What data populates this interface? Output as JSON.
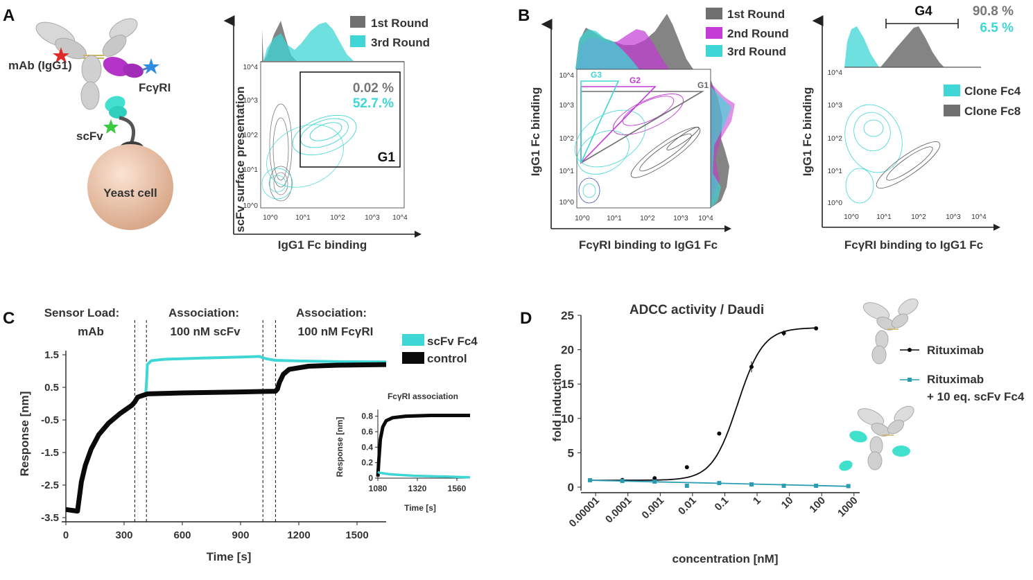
{
  "panel_letters": [
    "A",
    "B",
    "C",
    "D"
  ],
  "colors": {
    "gray": "#6f6f6f",
    "cyan": "#3fd6d6",
    "magenta": "#c23bd4",
    "black": "#0a0a0a",
    "teal": "#2a9db3"
  },
  "schematic": {
    "mab_label": "mAb (IgG1)",
    "fcgr_label": "FcγRI",
    "scfv_label": "scFv",
    "yeast_label": "Yeast cell"
  },
  "chart_data": [
    {
      "id": "A",
      "type": "scatter",
      "subtype": "flow cytometry contour",
      "xlabel": "IgG1 Fc binding",
      "ylabel": "scFv surface presentation",
      "xticks": [
        "10^0",
        "10^1",
        "10^2",
        "10^3",
        "10^4"
      ],
      "yticks": [
        "10^0",
        "10^1",
        "10^2",
        "10^3",
        "10^4"
      ],
      "legend": [
        {
          "name": "1st Round",
          "color": "#6f6f6f"
        },
        {
          "name": "3rd Round",
          "color": "#3fd6d6"
        }
      ],
      "gate": {
        "name": "G1",
        "pct_round1": "0.02 %",
        "pct_round3": "52.7.%"
      }
    },
    {
      "id": "B1",
      "type": "scatter",
      "subtype": "flow cytometry contour",
      "xlabel": "FcγRI binding to IgG1 Fc",
      "ylabel": "IgG1 Fc binding",
      "xticks": [
        "10^0",
        "10^1",
        "10^2",
        "10^3",
        "10^4"
      ],
      "yticks": [
        "10^0",
        "10^1",
        "10^2",
        "10^3",
        "10^4"
      ],
      "legend": [
        {
          "name": "1st Round",
          "color": "#6f6f6f"
        },
        {
          "name": "2nd Round",
          "color": "#c23bd4"
        },
        {
          "name": "3rd Round",
          "color": "#3fd6d6"
        }
      ],
      "gates": [
        "G1",
        "G2",
        "G3"
      ]
    },
    {
      "id": "B2",
      "type": "scatter",
      "subtype": "flow cytometry contour",
      "xlabel": "FcγRI binding to IgG1 Fc",
      "ylabel": "IgG1 Fc binding",
      "xticks": [
        "10^0",
        "10^1",
        "10^2",
        "10^3",
        "10^4"
      ],
      "yticks": [
        "10^0",
        "10^1",
        "10^2",
        "10^3",
        "10^4"
      ],
      "legend": [
        {
          "name": "Clone Fc4",
          "color": "#3fd6d6"
        },
        {
          "name": "Clone Fc8",
          "color": "#6f6f6f"
        }
      ],
      "gate": {
        "name": "G4",
        "pct_fc8": "90.8 %",
        "pct_fc4": "6.5 %"
      }
    },
    {
      "id": "C",
      "type": "line",
      "xlabel": "Time [s]",
      "ylabel": "Response [nm]",
      "xlim": [
        0,
        1650
      ],
      "ylim": [
        -3.5,
        1.5
      ],
      "xticks": [
        0,
        300,
        600,
        900,
        1200,
        1500
      ],
      "yticks": [
        -3.5,
        -2.5,
        -1.5,
        -0.5,
        0.5,
        1.5
      ],
      "ytick_labels": [
        "-3.5",
        "-2.5",
        "-1.5",
        "-0.5",
        "0.5",
        "1.5"
      ],
      "phases": [
        "Sensor Load:",
        "mAb",
        "Association:",
        "100 nM scFv",
        "Association:",
        "100 nM FcγRI"
      ],
      "phase_lines": [
        355,
        415,
        1015,
        1080
      ],
      "series": [
        {
          "name": "scFv Fc4",
          "color": "#3fd6d6",
          "x": [
            410,
            415,
            420,
            440,
            500,
            700,
            900,
            1000,
            1010,
            1030,
            1080,
            1200,
            1400,
            1650
          ],
          "y": [
            0.2,
            0.6,
            1.2,
            1.32,
            1.36,
            1.4,
            1.43,
            1.45,
            1.42,
            1.38,
            1.33,
            1.31,
            1.29,
            1.28
          ]
        },
        {
          "name": "control",
          "color": "#0a0a0a",
          "x": [
            0,
            60,
            70,
            80,
            100,
            130,
            170,
            220,
            280,
            340,
            355,
            370,
            420,
            600,
            900,
            1080,
            1090,
            1100,
            1120,
            1150,
            1250,
            1400,
            1650
          ],
          "y": [
            -3.25,
            -3.3,
            -2.85,
            -2.4,
            -1.9,
            -1.4,
            -0.95,
            -0.6,
            -0.3,
            -0.05,
            0.05,
            0.2,
            0.3,
            0.33,
            0.36,
            0.38,
            0.45,
            0.65,
            0.9,
            1.05,
            1.15,
            1.18,
            1.2
          ]
        }
      ]
    },
    {
      "id": "C_inset",
      "type": "line",
      "title": "FcγRI association",
      "xlabel": "Time [s]",
      "ylabel": "Response [nm]",
      "xlim": [
        1080,
        1640
      ],
      "ylim": [
        0,
        0.85
      ],
      "xticks": [
        1080,
        1320,
        1560
      ],
      "yticks": [
        0,
        0.2,
        0.4,
        0.6,
        0.8
      ],
      "ytick_labels": [
        "0",
        "0.2",
        "0.4",
        "0.6",
        "0.8"
      ],
      "series": [
        {
          "name": "control",
          "color": "#0a0a0a",
          "x": [
            1080,
            1085,
            1095,
            1110,
            1130,
            1170,
            1250,
            1400,
            1640
          ],
          "y": [
            0.02,
            0.2,
            0.5,
            0.66,
            0.74,
            0.78,
            0.8,
            0.81,
            0.81
          ]
        },
        {
          "name": "scFv Fc4",
          "color": "#3fd6d6",
          "x": [
            1080,
            1090,
            1150,
            1300,
            1500,
            1640
          ],
          "y": [
            0.08,
            0.07,
            0.05,
            0.03,
            0.02,
            0.01
          ]
        }
      ]
    },
    {
      "id": "D",
      "type": "scatter",
      "title": "ADCC activity / Daudi",
      "xlabel": "concentration [nM]",
      "ylabel": "fold induction",
      "xscale": "log",
      "xlim": [
        4.5e-06,
        1500
      ],
      "ylim": [
        0,
        25
      ],
      "xticks": [
        1e-05,
        0.0001,
        0.001,
        0.01,
        0.1,
        1,
        10,
        100,
        1000
      ],
      "xtick_labels": [
        "0.00001",
        "0.0001",
        "0.001",
        "0.01",
        "0.1",
        "1",
        "10",
        "100",
        "1000"
      ],
      "yticks": [
        0,
        5,
        10,
        15,
        20,
        25
      ],
      "series": [
        {
          "name": "Rituximab",
          "color": "#0a0a0a",
          "marker": "circle",
          "x": [
            6.7e-06,
            6.7e-05,
            0.00067,
            0.0067,
            0.067,
            0.67,
            6.7,
            67
          ],
          "y": [
            1.0,
            1.05,
            1.3,
            2.9,
            7.8,
            17.5,
            22.4,
            23.1
          ],
          "yerr": [
            0,
            0,
            0,
            0,
            0,
            0.8,
            0.4,
            0
          ]
        },
        {
          "name": "Rituximab + 10 eq. scFv Fc4",
          "color": "#2a9db3",
          "marker": "square",
          "x": [
            6.7e-06,
            6.7e-05,
            0.00067,
            0.0067,
            0.067,
            0.67,
            6.7,
            67,
            670
          ],
          "y": [
            1.0,
            0.9,
            0.8,
            0.2,
            0.6,
            0.4,
            0.2,
            0.2,
            0.15
          ],
          "yerr": [
            0,
            0,
            0,
            0,
            0,
            0,
            0,
            0,
            0
          ]
        }
      ],
      "legend": [
        "Rituximab",
        "Rituximab",
        "+ 10 eq. scFv Fc4"
      ]
    }
  ]
}
